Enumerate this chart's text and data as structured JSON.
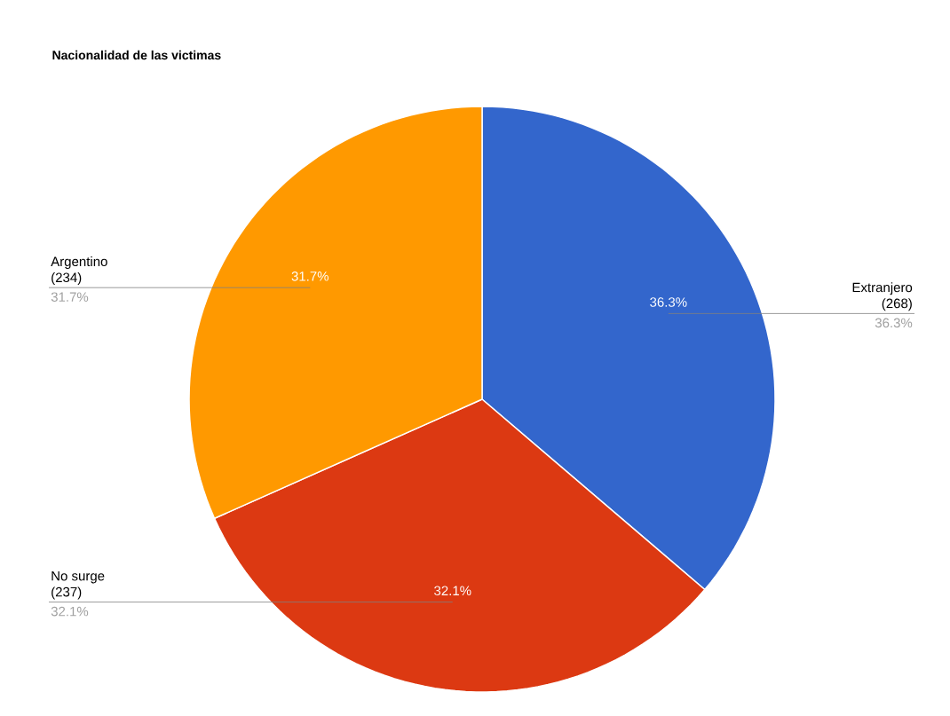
{
  "chart_data": {
    "type": "pie",
    "title": "Nacionalidad de las victimas",
    "categories": [
      "Extranjero",
      "No surge",
      "Argentino"
    ],
    "values": [
      36.3,
      32.1,
      31.7
    ],
    "value_labels": [
      "36.3%",
      "32.1%",
      "31.7%"
    ],
    "annotations": [
      "(268)",
      "(237)",
      "(234)"
    ],
    "colors": [
      "#3366cc",
      "#dc3912",
      "#ff9900"
    ]
  }
}
